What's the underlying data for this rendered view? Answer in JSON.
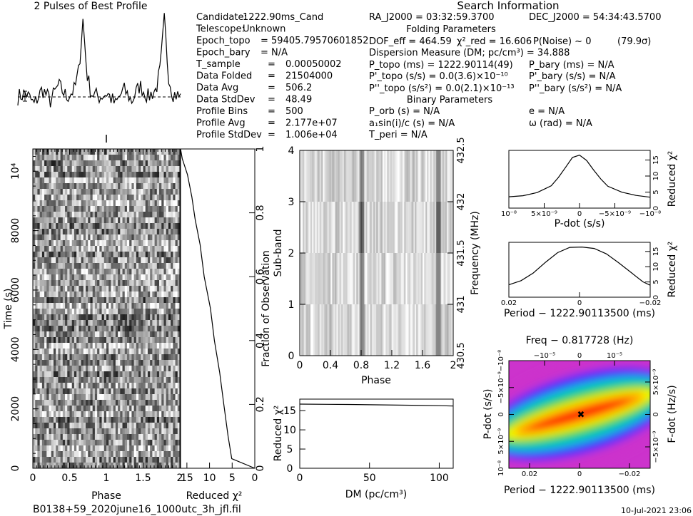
{
  "title": "2 Pulses of Best Profile",
  "search_header": "Search Information",
  "folding_header": "Folding Parameters",
  "binary_header": "Binary Parameters",
  "footer": {
    "filename": "B0138+59_2020june16_1000utc_3h_jfl.fil",
    "date": "10-Jul-2021 23:06"
  },
  "left_info": [
    [
      "Candidate:",
      "1222.90ms_Cand",
      ""
    ],
    [
      "Telescope:",
      "Unknown",
      ""
    ],
    [
      "Epoch_topo",
      "= 59405.79570601852",
      ""
    ],
    [
      "Epoch_bary",
      "= N/A",
      ""
    ],
    [
      "T_sample",
      "=",
      "0.00050002"
    ],
    [
      "Data Folded",
      "=",
      "21504000"
    ],
    [
      "Data Avg",
      "=",
      "506.2"
    ],
    [
      "Data StdDev",
      "=",
      "48.49"
    ],
    [
      "Profile Bins",
      "=",
      "500"
    ],
    [
      "Profile Avg",
      "=",
      "2.177e+07"
    ],
    [
      "Profile StdDev",
      "=",
      "1.006e+04"
    ]
  ],
  "right_info": {
    "ra": "RA_J2000 = 03:32:59.3700",
    "dec": "DEC_J2000 = 54:34:43.5700",
    "dof": "DOF_eff = 464.59",
    "chi": "χ²_red = 16.606",
    "pnoise": "P(Noise) ~ 0",
    "sigma": "(79.9σ)",
    "dm": "Dispersion Measure (DM; pc/cm³) = 34.888",
    "p_topo": "P_topo (ms) = 1222.90114(49)",
    "p_bary": "P_bary (ms) = N/A",
    "pd_topo": "P'_topo (s/s) = 0.0(3.6)×10⁻¹⁰",
    "pd_bary": "P'_bary (s/s) = N/A",
    "pdd_topo": "P''_topo (s/s²) = 0.0(2.1)×10⁻¹³",
    "pdd_bary": "P''_bary (s/s²) = N/A",
    "p_orb": "P_orb (s) = N/A",
    "e": "e = N/A",
    "a1": "a₁sin(i)/c (s) = N/A",
    "omega": "ω (rad) = N/A",
    "t_peri": "T_peri = N/A"
  },
  "chart_data": [
    {
      "name": "profile",
      "type": "line",
      "title": "2 Pulses of Best Profile",
      "x": [
        0,
        0.1,
        0.2,
        0.3,
        0.4,
        0.5,
        0.6,
        0.7,
        0.75,
        0.8,
        0.85,
        0.9,
        1.0,
        1.1,
        1.2,
        1.3,
        1.4,
        1.5,
        1.6,
        1.7,
        1.75,
        1.8,
        1.85,
        1.9,
        2.0
      ],
      "y": [
        0.0,
        0.05,
        -0.1,
        0.1,
        -0.05,
        0.15,
        0.0,
        0.1,
        0.35,
        1.0,
        0.3,
        0.05,
        0.0,
        0.05,
        -0.1,
        0.1,
        -0.05,
        0.15,
        0.0,
        0.1,
        0.35,
        1.0,
        0.3,
        0.05,
        0.0
      ],
      "xlim": [
        0,
        2
      ]
    },
    {
      "name": "time-phase",
      "type": "heatmap",
      "xlabel": "Phase",
      "ylabel": "Time (s)",
      "xlim": [
        0,
        2
      ],
      "ylim": [
        0,
        10750
      ],
      "xticks": [
        "0",
        "0.5",
        "1",
        "1.5",
        "2"
      ],
      "yticks": [
        "0",
        "2000",
        "4000",
        "6000",
        "8000",
        "10⁴"
      ],
      "ytick_values": [
        0,
        2000,
        4000,
        6000,
        8000,
        10000
      ]
    },
    {
      "name": "time-chi2",
      "type": "line",
      "xlabel": "Reduced χ²",
      "ylabel": "Fraction of Observation",
      "xticks": [
        "15",
        "10",
        "5",
        "0"
      ],
      "xtick_values": [
        15,
        10,
        5,
        0
      ],
      "yticks": [
        "0",
        "0.2",
        "0.4",
        "0.6",
        "0.8",
        "1"
      ],
      "ytick_values": [
        0,
        0.2,
        0.4,
        0.6,
        0.8,
        1
      ],
      "x": [
        0,
        5,
        6,
        7,
        8,
        9,
        10,
        11,
        12,
        13,
        14,
        15,
        16,
        16.4
      ],
      "y": [
        0,
        0.03,
        0.1,
        0.2,
        0.3,
        0.4,
        0.5,
        0.6,
        0.7,
        0.78,
        0.85,
        0.92,
        0.97,
        1.0
      ]
    },
    {
      "name": "subband-phase",
      "type": "heatmap",
      "xlabel": "Phase",
      "ylabel": "Sub-band",
      "y2label": "Frequency (MHz)",
      "xticks": [
        "0",
        "0.4",
        "0.8",
        "1.2",
        "1.6",
        "2"
      ],
      "xtick_values": [
        0,
        0.4,
        0.8,
        1.2,
        1.6,
        2
      ],
      "yticks": [
        "0",
        "1",
        "2",
        "3",
        "4"
      ],
      "y2ticks": [
        "430.5",
        "431",
        "431.5",
        "432",
        "432.5"
      ]
    },
    {
      "name": "dm-chi2",
      "type": "line",
      "xlabel": "DM (pc/cm³)",
      "ylabel": "Reduced χ²",
      "xticks": [
        "0",
        "50",
        "100"
      ],
      "xtick_values": [
        0,
        50,
        100
      ],
      "yticks": [
        "0",
        "5",
        "10",
        "15"
      ],
      "ytick_values": [
        0,
        5,
        10,
        15
      ],
      "xlim": [
        0,
        110
      ],
      "ylim": [
        0,
        18
      ],
      "x": [
        0,
        20,
        34.888,
        60,
        80,
        100,
        110
      ],
      "y": [
        16.7,
        16.65,
        16.6,
        16.5,
        16.4,
        16.3,
        16.2
      ]
    },
    {
      "name": "pdot-chi2",
      "type": "line",
      "xlabel": "P-dot (s/s)",
      "ylabel": "Reduced χ²",
      "xticks": [
        "10⁻⁸",
        "5×10⁻⁹",
        "0",
        "−5×10⁻⁹",
        "−10⁻⁸"
      ],
      "yticks": [
        "0",
        "5",
        "10",
        "15"
      ],
      "ytick_values": [
        0,
        5,
        10,
        15
      ],
      "x": [
        1.0,
        0.8,
        0.6,
        0.4,
        0.3,
        0.2,
        0.1,
        0.0,
        -0.1,
        -0.2,
        -0.3,
        -0.4,
        -0.6,
        -0.8,
        -1.0
      ],
      "y": [
        3.5,
        4.0,
        5.0,
        7.0,
        9.5,
        12.5,
        16.0,
        16.6,
        15.0,
        12.0,
        9.0,
        7.0,
        5.0,
        4.0,
        3.5
      ]
    },
    {
      "name": "period-chi2",
      "type": "line",
      "xlabel": "Period − 1222.90113500 (ms)",
      "ylabel": "Reduced χ²",
      "xticks": [
        "0.02",
        "0",
        "−0.02"
      ],
      "yticks": [
        "0",
        "5",
        "10",
        "15"
      ],
      "ytick_values": [
        0,
        5,
        10,
        15
      ],
      "x": [
        0.03,
        0.025,
        0.02,
        0.015,
        0.01,
        0.005,
        0.0,
        -0.005,
        -0.01,
        -0.015,
        -0.02,
        -0.025,
        -0.028
      ],
      "y": [
        4.0,
        5.5,
        8.0,
        11.5,
        14.5,
        16.3,
        16.6,
        16.0,
        14.0,
        11.5,
        8.0,
        5.0,
        4.0
      ]
    },
    {
      "name": "period-pdot",
      "type": "heatmap",
      "title": "Freq − 0.817728 (Hz)",
      "xlabel": "Period − 1222.90113500 (ms)",
      "ylabel": "P-dot (s/s)",
      "y2label": "F-dot (Hz/s)",
      "xticks": [
        "0.02",
        "0",
        "−0.02"
      ],
      "x2ticks": [
        "−10⁻⁵",
        "0",
        "10⁻⁵"
      ],
      "yticks": [
        "10⁻⁸",
        "5×10⁻⁹",
        "0",
        "−5×10⁻⁹",
        "−10⁻⁸"
      ],
      "y2ticks": [
        "−5×10⁻⁹",
        "0",
        "5×10⁻⁹"
      ],
      "colors": [
        "#cc33cc",
        "#3333ff",
        "#00cccc",
        "#00cc00",
        "#ffff00",
        "#ff8800",
        "#ff0000"
      ]
    }
  ]
}
